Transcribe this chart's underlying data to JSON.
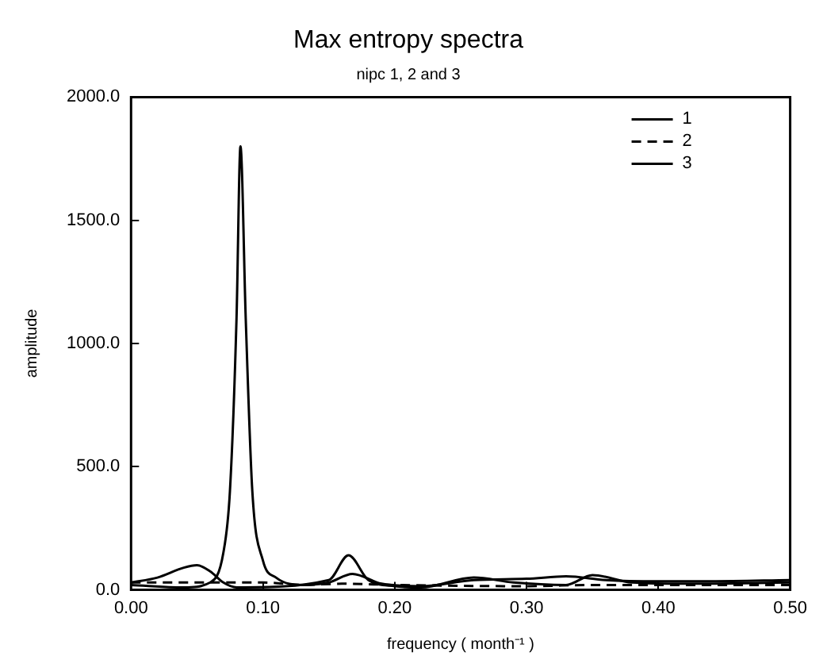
{
  "chart_data": {
    "type": "line",
    "title": "Max entropy spectra",
    "subtitle": "nipc 1, 2 and 3",
    "xlabel": "frequency ( month⁻¹ )",
    "ylabel": "amplitude",
    "xlim": [
      0,
      0.5
    ],
    "ylim": [
      0,
      2000
    ],
    "xticks": [
      {
        "value": 0,
        "label": "0.00"
      },
      {
        "value": 0.1,
        "label": "0.10"
      },
      {
        "value": 0.2,
        "label": "0.20"
      },
      {
        "value": 0.3,
        "label": "0.30"
      },
      {
        "value": 0.4,
        "label": "0.40"
      },
      {
        "value": 0.5,
        "label": "0.50"
      }
    ],
    "yticks": [
      {
        "value": 0,
        "label": "0.0"
      },
      {
        "value": 500,
        "label": "500.0"
      },
      {
        "value": 1000,
        "label": "1000.0"
      },
      {
        "value": 1500,
        "label": "1500.0"
      },
      {
        "value": 2000,
        "label": "2000.0"
      }
    ],
    "grid": false,
    "legend": "top right",
    "marker": "none",
    "series": [
      {
        "name": "1",
        "color": "#000000",
        "line_style": "solid",
        "x": [
          0,
          0.04,
          0.06,
          0.07,
          0.075,
          0.08,
          0.083,
          0.087,
          0.092,
          0.1,
          0.11,
          0.13,
          0.15,
          0.168,
          0.19,
          0.22,
          0.26,
          0.3,
          0.33,
          0.36,
          0.4,
          0.44,
          0.5
        ],
        "values": [
          20,
          10,
          30,
          150,
          400,
          1100,
          1800,
          1100,
          400,
          120,
          50,
          20,
          30,
          65,
          25,
          15,
          40,
          45,
          55,
          40,
          35,
          35,
          40
        ]
      },
      {
        "name": "2",
        "color": "#000000",
        "line_style": "dashed",
        "x": [
          0,
          0.1,
          0.13,
          0.16,
          0.2,
          0.3,
          0.35,
          0.4,
          0.5
        ],
        "values": [
          30,
          30,
          20,
          25,
          20,
          15,
          20,
          20,
          20
        ]
      },
      {
        "name": "3",
        "color": "#000000",
        "line_style": "solid",
        "x": [
          0,
          0.02,
          0.04,
          0.05,
          0.06,
          0.07,
          0.08,
          0.15,
          0.165,
          0.18,
          0.2,
          0.22,
          0.26,
          0.29,
          0.33,
          0.35,
          0.38,
          0.42,
          0.5
        ],
        "values": [
          30,
          50,
          90,
          100,
          75,
          30,
          10,
          40,
          140,
          40,
          15,
          10,
          50,
          30,
          20,
          60,
          30,
          25,
          30
        ]
      }
    ]
  }
}
